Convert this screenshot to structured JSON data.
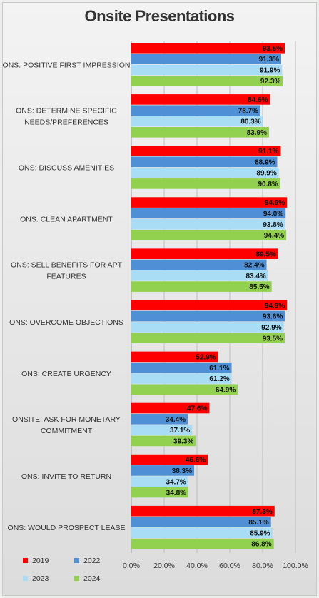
{
  "chart_data": {
    "type": "bar",
    "orientation": "horizontal",
    "title": "Onsite Presentations",
    "categories": [
      "ONS: POSITIVE FIRST IMPRESSION",
      "ONS: DETERMINE SPECIFIC NEEDS/PREFERENCES",
      "ONS: DISCUSS AMENITIES",
      "ONS: CLEAN APARTMENT",
      "ONS: SELL BENEFITS FOR APT FEATURES",
      "ONS: OVERCOME OBJECTIONS",
      "ONS: CREATE URGENCY",
      "ONSITE: ASK FOR MONETARY COMMITMENT",
      "ONS: INVITE TO RETURN",
      "ONS: WOULD PROSPECT LEASE"
    ],
    "category_lines": [
      [
        "ONS: POSITIVE FIRST IMPRESSION"
      ],
      [
        "ONS: DETERMINE SPECIFIC",
        "NEEDS/PREFERENCES"
      ],
      [
        "ONS: DISCUSS AMENITIES"
      ],
      [
        "ONS: CLEAN APARTMENT"
      ],
      [
        "ONS: SELL BENEFITS FOR APT",
        "FEATURES"
      ],
      [
        "ONS: OVERCOME OBJECTIONS"
      ],
      [
        "ONS: CREATE URGENCY"
      ],
      [
        "ONSITE: ASK FOR MONETARY",
        "COMMITMENT"
      ],
      [
        "ONS: INVITE TO RETURN"
      ],
      [
        "ONS: WOULD PROSPECT LEASE"
      ]
    ],
    "series": [
      {
        "name": "2019",
        "color": "#ff0000",
        "values": [
          93.5,
          84.6,
          91.1,
          94.9,
          89.5,
          94.9,
          52.9,
          47.6,
          46.6,
          87.3
        ]
      },
      {
        "name": "2022",
        "color": "#4f8fd6",
        "values": [
          91.3,
          78.7,
          88.9,
          94.0,
          82.4,
          93.6,
          61.1,
          34.4,
          38.3,
          85.1
        ]
      },
      {
        "name": "2023",
        "color": "#a9ddf6",
        "values": [
          91.9,
          80.3,
          89.9,
          93.8,
          83.4,
          92.9,
          61.2,
          37.1,
          34.7,
          85.9
        ]
      },
      {
        "name": "2024",
        "color": "#92d050",
        "values": [
          92.3,
          83.9,
          90.8,
          94.4,
          85.5,
          93.5,
          64.9,
          39.3,
          34.8,
          86.8
        ]
      }
    ],
    "value_format": "percent_1dp",
    "xlim": [
      0,
      100
    ],
    "x_ticks": [
      "0.0%",
      "20.0%",
      "40.0%",
      "60.0%",
      "80.0%",
      "100.0%"
    ],
    "x_tick_values": [
      0,
      20,
      40,
      60,
      80,
      100
    ],
    "grid": "vertical",
    "legend_position": "bottom-left",
    "xlabel": "",
    "ylabel": ""
  }
}
